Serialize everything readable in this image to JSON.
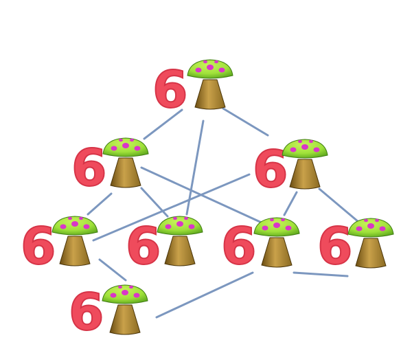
{
  "puzzle": {
    "type": "mushroom-graph",
    "colors": {
      "edge": "#7c97bf",
      "label": "#ef4b5c",
      "cap_top": "#9fe13a",
      "cap_shade": "#5fa81e",
      "cap_spot": "#d936c8",
      "stem_light": "#c9a14a",
      "stem_dark": "#6b4d12"
    },
    "nodes": [
      {
        "id": "top",
        "label": "6"
      },
      {
        "id": "upper-left",
        "label": "6"
      },
      {
        "id": "upper-right",
        "label": "6"
      },
      {
        "id": "middle-1",
        "label": "6"
      },
      {
        "id": "middle-2",
        "label": "6"
      },
      {
        "id": "middle-3",
        "label": "6"
      },
      {
        "id": "middle-4",
        "label": "6"
      },
      {
        "id": "bottom",
        "label": "6"
      }
    ],
    "edges": [
      [
        "top",
        "upper-left"
      ],
      [
        "top",
        "upper-right"
      ],
      [
        "top",
        "middle-2"
      ],
      [
        "upper-left",
        "middle-1"
      ],
      [
        "upper-left",
        "middle-2"
      ],
      [
        "upper-left",
        "middle-3"
      ],
      [
        "upper-right",
        "middle-1"
      ],
      [
        "upper-right",
        "middle-3"
      ],
      [
        "upper-right",
        "middle-4"
      ],
      [
        "middle-1",
        "bottom"
      ],
      [
        "middle-3",
        "middle-4"
      ],
      [
        "middle-3",
        "bottom"
      ]
    ]
  }
}
